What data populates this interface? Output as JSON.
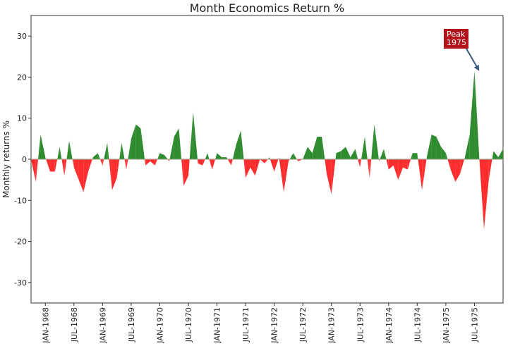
{
  "chart_data": {
    "type": "area",
    "title": "Month Economics Return %",
    "xlabel": "",
    "ylabel": "Monthly returns %",
    "ylim": [
      -35,
      35
    ],
    "yticks": [
      30,
      20,
      10,
      0,
      -10,
      -20,
      -30
    ],
    "grid": false,
    "x_start": "1967-10",
    "x_ticks": [
      {
        "label": "JAN-1968",
        "date": "1968-01"
      },
      {
        "label": "JUL-1968",
        "date": "1968-07"
      },
      {
        "label": "JAN-1969",
        "date": "1969-01"
      },
      {
        "label": "JUL-1969",
        "date": "1969-07"
      },
      {
        "label": "JAN-1970",
        "date": "1970-01"
      },
      {
        "label": "JUL-1970",
        "date": "1970-07"
      },
      {
        "label": "JAN-1971",
        "date": "1971-01"
      },
      {
        "label": "JUL-1971",
        "date": "1971-07"
      },
      {
        "label": "JAN-1972",
        "date": "1972-01"
      },
      {
        "label": "JUL-1972",
        "date": "1972-07"
      },
      {
        "label": "JAN-1973",
        "date": "1973-01"
      },
      {
        "label": "JUL-1973",
        "date": "1973-07"
      },
      {
        "label": "JAN-1974",
        "date": "1974-01"
      },
      {
        "label": "JUL-1974",
        "date": "1974-07"
      },
      {
        "label": "JAN-1975",
        "date": "1975-01"
      },
      {
        "label": "JUL-1975",
        "date": "1975-07"
      }
    ],
    "series": [
      {
        "values": [
          0,
          -5.5,
          6,
          0.5,
          -3,
          -3,
          3,
          -4,
          4.5,
          -2,
          -5,
          -8,
          -3,
          0.5,
          1.5,
          -1.5,
          4,
          -7.5,
          -4.5,
          4,
          -2.5,
          5,
          8.5,
          7.5,
          -1.5,
          -0.5,
          -1.5,
          1.5,
          1,
          -0.5,
          5.5,
          7.5,
          -6.5,
          -4,
          11.5,
          -1,
          -1.5,
          1.5,
          -2.5,
          1.5,
          0.5,
          0.5,
          -1.5,
          3.5,
          7,
          -4.5,
          -2,
          -4,
          0,
          -1,
          0.5,
          -3,
          0.5,
          -8,
          -0.5,
          1.5,
          -0.5,
          0,
          3,
          1.5,
          5.5,
          5.5,
          -3.5,
          -8.5,
          1.5,
          2,
          3,
          0.5,
          2.5,
          -2,
          5.5,
          -4.5,
          8.5,
          -0.5,
          2.5,
          -2.5,
          -1.5,
          -5,
          -2,
          -2.5,
          1.5,
          1.5,
          -7.5,
          0.5,
          6,
          5.5,
          3,
          1.5,
          -2.5,
          -5.5,
          -3.5,
          0.5,
          6,
          21.5,
          0.5,
          -17,
          -5,
          2,
          0.5,
          2.5
        ],
        "positive_color": "#2e8b2e",
        "negative_color": "#ff2d2d"
      }
    ],
    "annotations": [
      {
        "text": "Peak\n1975",
        "date": "1975-08",
        "value": 21.5,
        "box_color": "#b3141b",
        "text_color": "#ffffff",
        "arrow_color": "#3d5a80"
      }
    ]
  }
}
